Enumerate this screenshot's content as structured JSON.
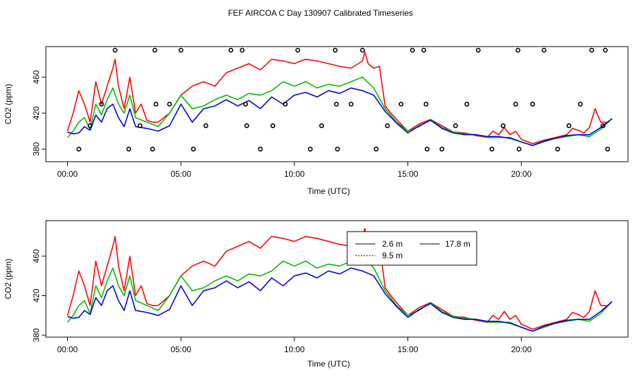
{
  "figure": {
    "title": "FEF AIRCOA C  Day 130907  Calibrated Timeseries"
  },
  "chart_data": [
    {
      "type": "line",
      "xlabel": "Time (UTC)",
      "ylabel": "CO2 (ppm)",
      "xlim": [
        -0.95,
        24.7
      ],
      "ylim": [
        366,
        494
      ],
      "xticks": [
        0,
        5,
        10,
        15,
        20
      ],
      "xtick_labels": [
        "00:00",
        "05:00",
        "10:00",
        "15:00",
        "20:00"
      ],
      "yticks": [
        380,
        420,
        460
      ],
      "ytick_labels": [
        "380",
        "420",
        "460"
      ],
      "series": [
        {
          "name": "2.6 m",
          "color": "#ff0000",
          "x": [
            0.0,
            0.25,
            0.5,
            0.75,
            1.0,
            1.25,
            1.5,
            1.75,
            2.0,
            2.1,
            2.25,
            2.5,
            2.75,
            3.0,
            3.25,
            3.5,
            3.75,
            4.0,
            4.5,
            5.0,
            5.5,
            6.0,
            6.5,
            7.0,
            7.5,
            8.0,
            8.5,
            9.0,
            9.5,
            10.0,
            10.5,
            11.0,
            11.5,
            12.0,
            12.5,
            13.0,
            13.1,
            13.25,
            13.5,
            13.75,
            14.0,
            14.25,
            14.5,
            15.0,
            15.5,
            16.0,
            16.5,
            17.0,
            17.5,
            18.0,
            18.5,
            18.75,
            19.0,
            19.25,
            19.5,
            19.75,
            20.0,
            20.5,
            20.75,
            21.0,
            21.5,
            22.0,
            22.25,
            22.5,
            22.75,
            23.0,
            23.25,
            23.5,
            23.75
          ],
          "values": [
            400,
            420,
            445,
            430,
            410,
            455,
            430,
            450,
            470,
            480,
            450,
            425,
            460,
            420,
            430,
            412,
            410,
            410,
            420,
            440,
            450,
            455,
            450,
            465,
            470,
            475,
            468,
            480,
            478,
            475,
            480,
            478,
            475,
            472,
            470,
            478,
            488,
            475,
            470,
            472,
            428,
            420,
            413,
            400,
            408,
            413,
            406,
            399,
            398,
            395,
            393,
            400,
            396,
            404,
            396,
            400,
            391,
            386,
            388,
            390,
            393,
            396,
            403,
            401,
            398,
            404,
            425,
            410,
            410
          ]
        },
        {
          "name": "9.5 m",
          "color": "#00bb00",
          "x": [
            0.0,
            0.25,
            0.5,
            0.75,
            1.0,
            1.25,
            1.5,
            1.75,
            2.0,
            2.25,
            2.5,
            2.75,
            3.0,
            3.5,
            4.0,
            4.5,
            5.0,
            5.5,
            6.0,
            6.5,
            7.0,
            7.5,
            8.0,
            8.5,
            9.0,
            9.5,
            10.0,
            10.5,
            11.0,
            11.5,
            12.0,
            12.5,
            13.0,
            13.5,
            14.0,
            14.5,
            15.0,
            15.5,
            16.0,
            16.5,
            17.0,
            17.5,
            18.0,
            18.5,
            19.0,
            19.5,
            20.0,
            20.5,
            21.0,
            21.5,
            22.0,
            22.5,
            23.0,
            23.5,
            24.0
          ],
          "values": [
            393,
            400,
            410,
            415,
            402,
            430,
            418,
            435,
            448,
            430,
            420,
            440,
            415,
            410,
            405,
            420,
            440,
            425,
            428,
            435,
            440,
            435,
            442,
            440,
            445,
            455,
            450,
            455,
            448,
            452,
            450,
            455,
            460,
            448,
            425,
            410,
            400,
            405,
            413,
            404,
            399,
            397,
            396,
            393,
            393,
            393,
            388,
            384,
            388,
            392,
            394,
            396,
            394,
            402,
            414
          ]
        },
        {
          "name": "17.8 m",
          "color": "#0000dd",
          "x": [
            0.0,
            0.25,
            0.5,
            0.75,
            1.0,
            1.25,
            1.5,
            1.75,
            2.0,
            2.25,
            2.5,
            2.75,
            3.0,
            3.5,
            4.0,
            4.5,
            5.0,
            5.5,
            6.0,
            6.5,
            7.0,
            7.5,
            8.0,
            8.5,
            9.0,
            9.5,
            10.0,
            10.5,
            11.0,
            11.5,
            12.0,
            12.5,
            13.0,
            13.5,
            14.0,
            14.5,
            15.0,
            15.5,
            16.0,
            16.5,
            17.0,
            17.5,
            18.0,
            18.5,
            19.0,
            19.5,
            20.0,
            20.5,
            21.0,
            21.5,
            22.0,
            22.5,
            23.0,
            23.5,
            24.0
          ],
          "values": [
            399,
            397,
            398,
            405,
            401,
            418,
            410,
            425,
            430,
            415,
            405,
            425,
            405,
            403,
            400,
            406,
            430,
            410,
            425,
            428,
            435,
            428,
            434,
            425,
            438,
            430,
            440,
            443,
            438,
            445,
            442,
            448,
            445,
            440,
            422,
            409,
            398,
            406,
            412,
            403,
            398,
            396,
            396,
            394,
            394,
            392,
            388,
            384,
            389,
            392,
            395,
            396,
            396,
            404,
            414
          ]
        }
      ],
      "valve_points": {
        "x": [
          0.5,
          1.0,
          1.5,
          2.1,
          2.7,
          3.2,
          3.75,
          3.85,
          3.9,
          4.5,
          5.0,
          5.55,
          6.1,
          7.2,
          7.7,
          7.85,
          7.9,
          8.5,
          9.05,
          9.6,
          10.15,
          10.7,
          11.2,
          11.8,
          11.85,
          11.9,
          12.5,
          13.0,
          13.6,
          14.1,
          14.7,
          15.2,
          15.7,
          15.8,
          15.85,
          16.5,
          17.1,
          17.6,
          18.1,
          18.7,
          19.2,
          19.75,
          19.85,
          19.9,
          20.5,
          21.0,
          21.6,
          22.1,
          22.6,
          23.1,
          23.6,
          23.7,
          23.8
        ],
        "values": [
          380,
          406,
          430,
          490,
          380,
          406,
          380,
          490,
          430,
          430,
          490,
          380,
          406,
          490,
          490,
          430,
          406,
          380,
          406,
          430,
          490,
          380,
          406,
          490,
          430,
          380,
          430,
          490,
          380,
          406,
          430,
          490,
          490,
          430,
          380,
          380,
          406,
          430,
          490,
          380,
          406,
          430,
          490,
          380,
          430,
          490,
          380,
          406,
          430,
          490,
          406,
          490,
          380
        ]
      }
    },
    {
      "type": "line",
      "xlabel": "Time (UTC)",
      "ylabel": "CO2 (ppm)",
      "xlim": [
        -0.95,
        24.7
      ],
      "ylim": [
        378,
        496
      ],
      "xticks": [
        0,
        5,
        10,
        15,
        20
      ],
      "xtick_labels": [
        "00:00",
        "05:00",
        "10:00",
        "15:00",
        "20:00"
      ],
      "yticks": [
        380,
        420,
        460
      ],
      "ytick_labels": [
        "380",
        "420",
        "460"
      ],
      "legend": {
        "placement": "top-center",
        "entries": [
          "2.6 m",
          "9.5 m",
          "17.8 m"
        ]
      },
      "series": [
        {
          "name": "2.6 m",
          "color": "#ff0000",
          "same_as_top": true
        },
        {
          "name": "9.5 m",
          "color": "#00bb00",
          "same_as_top": true
        },
        {
          "name": "17.8 m",
          "color": "#0000dd",
          "same_as_top": true
        }
      ]
    }
  ]
}
